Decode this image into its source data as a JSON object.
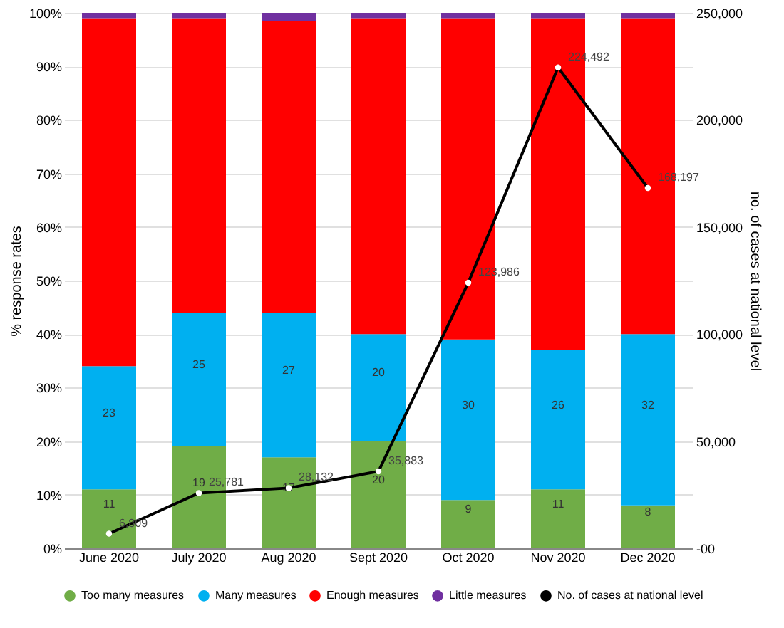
{
  "chart_data": {
    "type": "bar",
    "stacked": true,
    "ylabel": "% response rates",
    "y2label": "no. of cases at national level",
    "categories": [
      "June 2020",
      "July 2020",
      "Aug 2020",
      "Sept 2020",
      "Oct 2020",
      "Nov 2020",
      "Dec 2020"
    ],
    "ylim": [
      0,
      100
    ],
    "yticks": [
      {
        "value": 0,
        "label": "0%"
      },
      {
        "value": 10,
        "label": "10%"
      },
      {
        "value": 20,
        "label": "20%"
      },
      {
        "value": 30,
        "label": "30%"
      },
      {
        "value": 40,
        "label": "40%"
      },
      {
        "value": 50,
        "label": "50%"
      },
      {
        "value": 60,
        "label": "60%"
      },
      {
        "value": 70,
        "label": "70%"
      },
      {
        "value": 80,
        "label": "80%"
      },
      {
        "value": 90,
        "label": "90%"
      },
      {
        "value": 100,
        "label": "100%"
      }
    ],
    "y2lim": [
      0,
      250000
    ],
    "y2ticks": [
      {
        "value": 0,
        "label": "-00"
      },
      {
        "value": 50000,
        "label": "50,000"
      },
      {
        "value": 100000,
        "label": "100,000"
      },
      {
        "value": 150000,
        "label": "150,000"
      },
      {
        "value": 200000,
        "label": "200,000"
      },
      {
        "value": 250000,
        "label": "250,000"
      }
    ],
    "series": [
      {
        "name": "Too many measures",
        "color": "#70ad47",
        "values": [
          11,
          19,
          17,
          20,
          9,
          11,
          8
        ],
        "value_labels": [
          "11",
          "19",
          "17",
          "20",
          "9",
          "11",
          "8"
        ]
      },
      {
        "name": "Many measures",
        "color": "#00b0f0",
        "values": [
          23,
          25,
          27,
          20,
          30,
          26,
          32
        ],
        "value_labels": [
          "23",
          "25",
          "27",
          "20",
          "30",
          "26",
          "32"
        ]
      },
      {
        "name": "Enough measures",
        "color": "#ff0000",
        "values": [
          65,
          55,
          54.5,
          59,
          60,
          62,
          59
        ]
      },
      {
        "name": "Little measures",
        "color": "#7030a0",
        "values": [
          1,
          1,
          1.5,
          1,
          1,
          1,
          1
        ]
      },
      {
        "name": "No. of cases at national level",
        "type": "line",
        "axis": "y2",
        "color": "#000000",
        "marker": "circle",
        "values": [
          6809,
          25781,
          28132,
          35883,
          123986,
          224492,
          168197
        ],
        "value_labels": [
          "6,809",
          "25,781",
          "28,132",
          "35,883",
          "123,986",
          "224,492",
          "168,197"
        ]
      }
    ],
    "grid": "y",
    "legend": "bottom"
  }
}
